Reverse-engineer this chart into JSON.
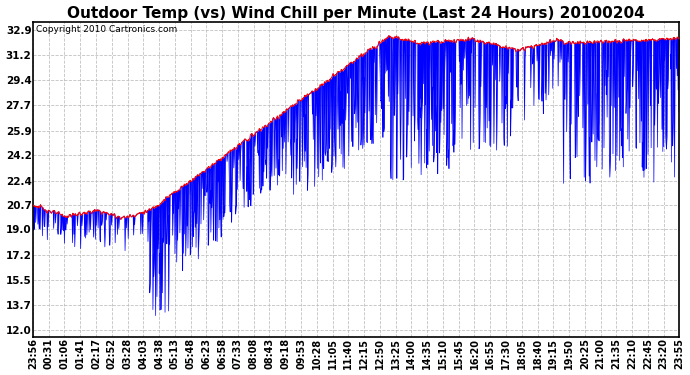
{
  "title": "Outdoor Temp (vs) Wind Chill per Minute (Last 24 Hours) 20100204",
  "copyright": "Copyright 2010 Cartronics.com",
  "yticks": [
    12.0,
    13.7,
    15.5,
    17.2,
    19.0,
    20.7,
    22.4,
    24.2,
    25.9,
    27.7,
    29.4,
    31.2,
    32.9
  ],
  "ylim": [
    11.5,
    33.5
  ],
  "bg_color": "#ffffff",
  "plot_bg_color": "#ffffff",
  "grid_color": "#bbbbbb",
  "line_color_red": "#ff0000",
  "line_color_blue": "#0000ff",
  "fill_color_blue": "#0000ff",
  "title_fontsize": 11,
  "copyright_fontsize": 6.5,
  "tick_fontsize": 7.5,
  "xtick_labels": [
    "23:56",
    "00:31",
    "01:06",
    "01:41",
    "02:17",
    "02:52",
    "03:28",
    "04:03",
    "04:38",
    "05:13",
    "05:48",
    "06:23",
    "06:58",
    "07:33",
    "08:08",
    "08:43",
    "09:18",
    "09:53",
    "10:28",
    "11:05",
    "11:40",
    "12:15",
    "12:50",
    "13:25",
    "14:00",
    "14:35",
    "15:10",
    "15:45",
    "16:20",
    "16:55",
    "17:30",
    "18:05",
    "18:40",
    "19:15",
    "19:50",
    "20:25",
    "21:00",
    "21:35",
    "22:10",
    "22:45",
    "23:20",
    "23:55"
  ]
}
